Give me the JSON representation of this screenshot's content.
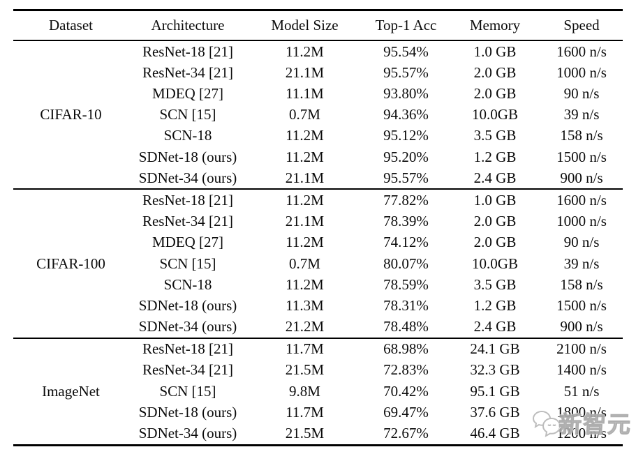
{
  "table": {
    "columns": [
      "Dataset",
      "Architecture",
      "Model Size",
      "Top-1 Acc",
      "Memory",
      "Speed"
    ],
    "groups": [
      {
        "dataset": "CIFAR-10",
        "rows": [
          {
            "architecture": "ResNet-18 [21]",
            "model_size": "11.2M",
            "top1_acc": "95.54%",
            "memory": "1.0 GB",
            "speed": "1600 n/s"
          },
          {
            "architecture": "ResNet-34 [21]",
            "model_size": "21.1M",
            "top1_acc": "95.57%",
            "memory": "2.0 GB",
            "speed": "1000 n/s"
          },
          {
            "architecture": "MDEQ [27]",
            "model_size": "11.1M",
            "top1_acc": "93.80%",
            "memory": "2.0 GB",
            "speed": "90 n/s"
          },
          {
            "architecture": "SCN [15]",
            "model_size": "0.7M",
            "top1_acc": "94.36%",
            "memory": "10.0GB",
            "speed": "39 n/s"
          },
          {
            "architecture": "SCN-18",
            "model_size": "11.2M",
            "top1_acc": "95.12%",
            "memory": "3.5 GB",
            "speed": "158 n/s"
          },
          {
            "architecture": "SDNet-18 (ours)",
            "model_size": "11.2M",
            "top1_acc": "95.20%",
            "memory": "1.2 GB",
            "speed": "1500 n/s"
          },
          {
            "architecture": "SDNet-34 (ours)",
            "model_size": "21.1M",
            "top1_acc": "95.57%",
            "memory": "2.4 GB",
            "speed": "900 n/s"
          }
        ]
      },
      {
        "dataset": "CIFAR-100",
        "rows": [
          {
            "architecture": "ResNet-18 [21]",
            "model_size": "11.2M",
            "top1_acc": "77.82%",
            "memory": "1.0 GB",
            "speed": "1600 n/s"
          },
          {
            "architecture": "ResNet-34 [21]",
            "model_size": "21.1M",
            "top1_acc": "78.39%",
            "memory": "2.0 GB",
            "speed": "1000 n/s"
          },
          {
            "architecture": "MDEQ [27]",
            "model_size": "11.2M",
            "top1_acc": "74.12%",
            "memory": "2.0 GB",
            "speed": "90 n/s"
          },
          {
            "architecture": "SCN [15]",
            "model_size": "0.7M",
            "top1_acc": "80.07%",
            "memory": "10.0GB",
            "speed": "39 n/s"
          },
          {
            "architecture": "SCN-18",
            "model_size": "11.2M",
            "top1_acc": "78.59%",
            "memory": "3.5 GB",
            "speed": "158 n/s"
          },
          {
            "architecture": "SDNet-18 (ours)",
            "model_size": "11.3M",
            "top1_acc": "78.31%",
            "memory": "1.2 GB",
            "speed": "1500 n/s"
          },
          {
            "architecture": "SDNet-34 (ours)",
            "model_size": "21.2M",
            "top1_acc": "78.48%",
            "memory": "2.4 GB",
            "speed": "900 n/s"
          }
        ]
      },
      {
        "dataset": "ImageNet",
        "rows": [
          {
            "architecture": "ResNet-18 [21]",
            "model_size": "11.7M",
            "top1_acc": "68.98%",
            "memory": "24.1 GB",
            "speed": "2100 n/s"
          },
          {
            "architecture": "ResNet-34 [21]",
            "model_size": "21.5M",
            "top1_acc": "72.83%",
            "memory": "32.3 GB",
            "speed": "1400 n/s"
          },
          {
            "architecture": "SCN [15]",
            "model_size": "9.8M",
            "top1_acc": "70.42%",
            "memory": "95.1 GB",
            "speed": "51 n/s"
          },
          {
            "architecture": "SDNet-18 (ours)",
            "model_size": "11.7M",
            "top1_acc": "69.47%",
            "memory": "37.6 GB",
            "speed": "1800 n/s"
          },
          {
            "architecture": "SDNet-34 (ours)",
            "model_size": "21.5M",
            "top1_acc": "72.67%",
            "memory": "46.4 GB",
            "speed": "1200 n/s"
          }
        ]
      }
    ]
  },
  "watermark": {
    "text": "新智元",
    "color": "#c6c6c6"
  },
  "colors": {
    "text": "#0b0b0b",
    "background": "#ffffff",
    "rule": "#000000"
  }
}
